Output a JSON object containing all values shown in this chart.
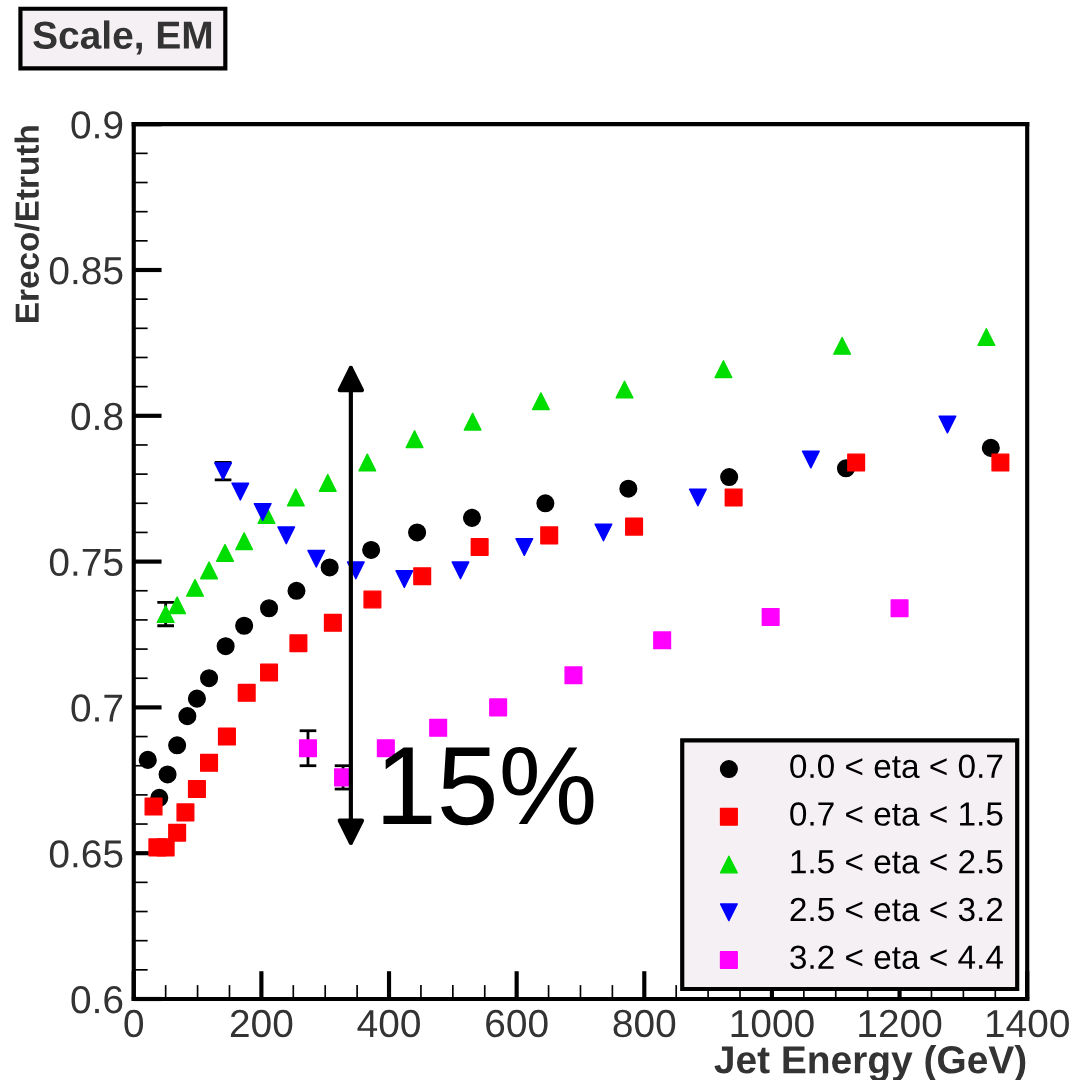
{
  "chart_data": {
    "type": "scatter",
    "title": "Scale, EM",
    "xlabel": "Jet Energy (GeV)",
    "ylabel": "Ereco/Etruth",
    "xlim": [
      0,
      1400
    ],
    "xticks": [
      0,
      200,
      400,
      600,
      800,
      1000,
      1200,
      1400
    ],
    "ylim": [
      0.6,
      0.9
    ],
    "yticks": [
      0.6,
      0.65,
      0.7,
      0.75,
      0.8,
      0.85,
      0.9
    ],
    "grid": false,
    "legend": "bottom right",
    "annotations": [
      "15%"
    ],
    "series": [
      {
        "name": "0.0 < eta < 0.7",
        "color": "#000000",
        "marker": "circle",
        "x": [
          22,
          40,
          53,
          68,
          84,
          99,
          118,
          144,
          173,
          212,
          255,
          307,
          372,
          444,
          530,
          645,
          775,
          933,
          1116,
          1343
        ],
        "values": [
          0.682,
          0.669,
          0.677,
          0.687,
          0.697,
          0.703,
          0.71,
          0.721,
          0.728,
          0.734,
          0.74,
          0.748,
          0.754,
          0.76,
          0.765,
          0.77,
          0.775,
          0.779,
          0.782,
          0.789
        ]
      },
      {
        "name": "0.7 < eta < 1.5",
        "color": "#ff0000",
        "marker": "square",
        "x": [
          31,
          37,
          50,
          68,
          81,
          99,
          118,
          146,
          177,
          212,
          258,
          312,
          374,
          452,
          542,
          651,
          784,
          940,
          1132,
          1358
        ],
        "values": [
          0.666,
          0.652,
          0.652,
          0.657,
          0.664,
          0.672,
          0.681,
          0.69,
          0.705,
          0.712,
          0.722,
          0.729,
          0.737,
          0.745,
          0.755,
          0.759,
          0.762,
          0.772,
          0.784,
          0.784
        ]
      },
      {
        "name": "1.5 < eta < 2.5",
        "color": "#00dd00",
        "marker": "triangle",
        "x": [
          50,
          68,
          96,
          118,
          143,
          173,
          208,
          254,
          304,
          366,
          440,
          531,
          638,
          769,
          924,
          1110,
          1336
        ],
        "values": [
          0.732,
          0.735,
          0.741,
          0.747,
          0.753,
          0.757,
          0.766,
          0.772,
          0.777,
          0.784,
          0.792,
          0.798,
          0.805,
          0.809,
          0.816,
          0.824,
          0.827
        ],
        "errors": [
          0.004,
          null,
          null,
          null,
          null,
          null,
          null,
          null,
          null,
          null,
          null,
          null,
          null,
          null,
          null,
          null,
          null
        ]
      },
      {
        "name": "2.5 < eta < 3.2",
        "color": "#0000ff",
        "marker": "triangle_down",
        "x": [
          140,
          167,
          202,
          239,
          286,
          348,
          424,
          512,
          612,
          736,
          884,
          1061,
          1275
        ],
        "values": [
          0.781,
          0.774,
          0.767,
          0.759,
          0.751,
          0.747,
          0.744,
          0.747,
          0.755,
          0.76,
          0.772,
          0.785,
          0.797
        ],
        "errors": [
          0.003,
          null,
          null,
          null,
          null,
          null,
          null,
          null,
          null,
          null,
          null,
          null,
          null
        ]
      },
      {
        "name": "3.2 < eta < 4.4",
        "color": "#ff00ff",
        "marker": "square",
        "x": [
          273,
          328,
          395,
          477,
          571,
          689,
          828,
          998,
          1200
        ],
        "values": [
          0.686,
          0.676,
          0.686,
          0.693,
          0.7,
          0.711,
          0.723,
          0.731,
          0.734
        ],
        "errors": [
          0.006,
          0.004,
          null,
          null,
          null,
          null,
          null,
          null,
          null
        ]
      }
    ]
  }
}
